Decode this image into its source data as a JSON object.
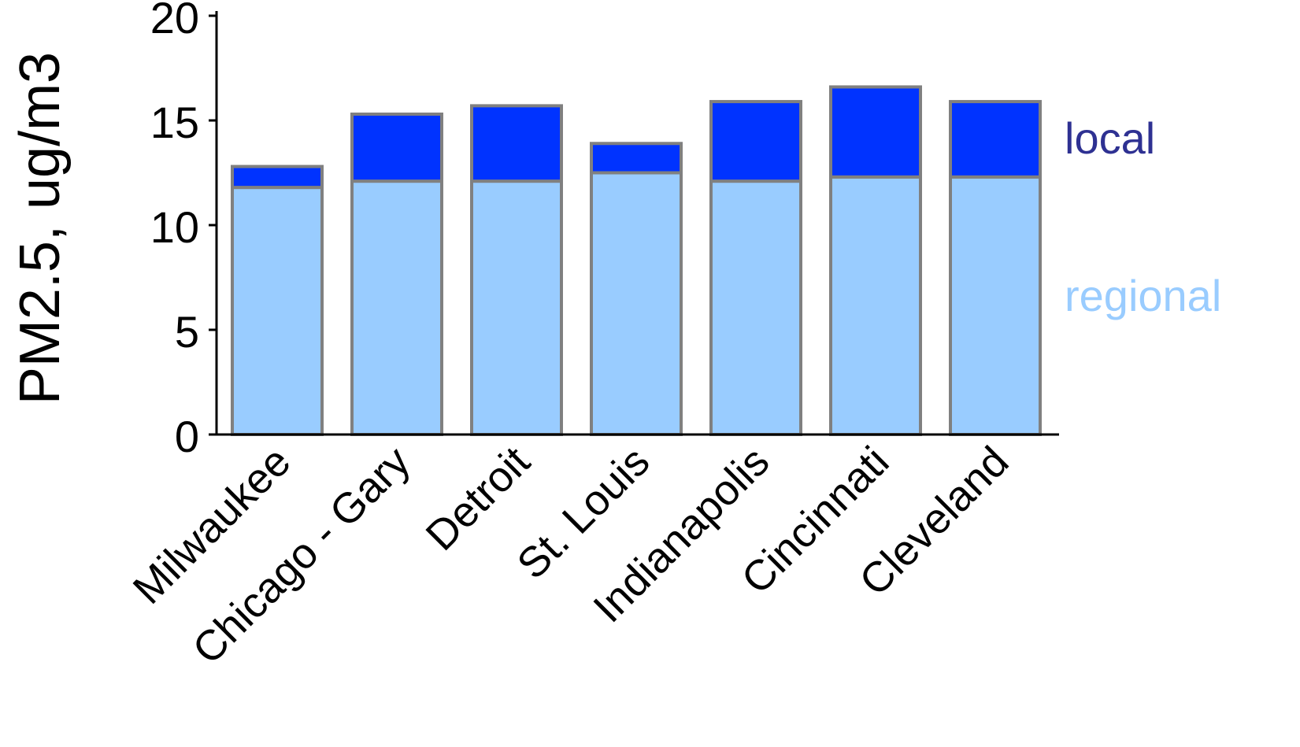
{
  "chart_data": {
    "type": "bar",
    "stacked": true,
    "title": "",
    "xlabel": "",
    "ylabel": "PM2.5, ug/m3",
    "ylim": [
      0,
      20
    ],
    "yticks": [
      "0",
      "5",
      "10",
      "15",
      "20"
    ],
    "categories": [
      "Milwaukee",
      "Chicago - Gary",
      "Detroit",
      "St. Louis",
      "Indianapolis",
      "Cincinnati",
      "Cleveland"
    ],
    "series": [
      {
        "name": "regional",
        "color": "#99ccff",
        "values": [
          11.8,
          12.1,
          12.1,
          12.5,
          12.1,
          12.3,
          12.3
        ]
      },
      {
        "name": "local",
        "color": "#0033ff",
        "values": [
          1.0,
          3.2,
          3.6,
          1.4,
          3.8,
          4.3,
          3.6
        ]
      }
    ],
    "legend_placement": "right",
    "legend_colors": {
      "regional": "#99ccff",
      "local": "#2e3192"
    },
    "bar_edge_color": "#808080",
    "grid": false
  }
}
